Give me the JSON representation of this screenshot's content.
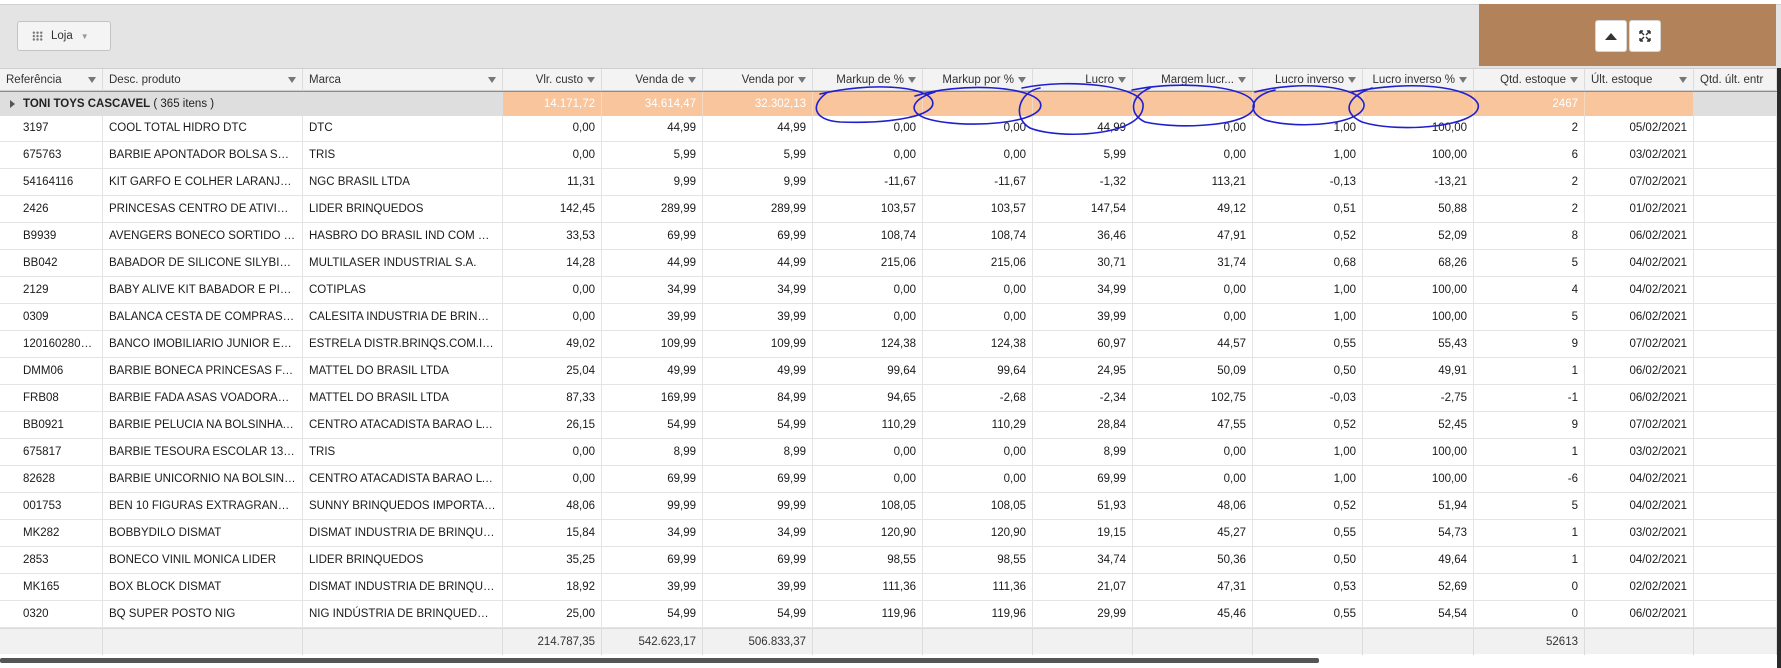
{
  "toolbar": {
    "group_button_label": "Loja",
    "group_icon": "grid-dots-icon",
    "caret_icon": "chevron-down-icon"
  },
  "controls": {
    "collapse_icon": "triangle-up-icon",
    "fullscreen_icon": "expand-arrows-icon"
  },
  "columns": [
    {
      "key": "ref",
      "label": "Referência",
      "align": "left"
    },
    {
      "key": "desc",
      "label": "Desc. produto",
      "align": "left"
    },
    {
      "key": "marca",
      "label": "Marca",
      "align": "left"
    },
    {
      "key": "vlr_custo",
      "label": "Vlr. custo",
      "align": "right"
    },
    {
      "key": "venda_de",
      "label": "Venda de",
      "align": "right"
    },
    {
      "key": "venda_por",
      "label": "Venda por",
      "align": "right"
    },
    {
      "key": "markup_de",
      "label": "Markup de %",
      "align": "right"
    },
    {
      "key": "markup_por",
      "label": "Markup por %",
      "align": "right"
    },
    {
      "key": "lucro",
      "label": "Lucro",
      "align": "right"
    },
    {
      "key": "margem",
      "label": "Margem lucr...",
      "align": "right"
    },
    {
      "key": "lucro_inv",
      "label": "Lucro inverso",
      "align": "right"
    },
    {
      "key": "lucro_inv_pct",
      "label": "Lucro inverso %",
      "align": "right"
    },
    {
      "key": "qtd",
      "label": "Qtd. estoque",
      "align": "right"
    },
    {
      "key": "ult",
      "label": "Últ. estoque",
      "align": "left"
    },
    {
      "key": "qtd_ult",
      "label": "Qtd. últ. entr",
      "align": "left"
    }
  ],
  "group": {
    "name": "TONI TOYS CASCAVEL",
    "count": "( 365 itens )",
    "vlr_custo": "14.171,72",
    "venda_de": "34.614,47",
    "venda_por": "32.302,13",
    "qtd": "2467"
  },
  "rows": [
    {
      "ref": "3197",
      "desc": "COOL TOTAL HIDRO DTC",
      "marca": "DTC",
      "vlr_custo": "0,00",
      "venda_de": "44,99",
      "venda_por": "44,99",
      "markup_de": "0,00",
      "markup_por": "0,00",
      "lucro": "44,99",
      "margem": "0,00",
      "lucro_inv": "1,00",
      "lucro_inv_pct": "100,00",
      "qtd": "2",
      "ult": "05/02/2021"
    },
    {
      "ref": "675763",
      "desc": "BARBIE APONTADOR BOLSA SUM...",
      "marca": "TRIS",
      "vlr_custo": "0,00",
      "venda_de": "5,99",
      "venda_por": "5,99",
      "markup_de": "0,00",
      "markup_por": "0,00",
      "lucro": "5,99",
      "margem": "0,00",
      "lucro_inv": "1,00",
      "lucro_inv_pct": "100,00",
      "qtd": "6",
      "ult": "03/02/2021"
    },
    {
      "ref": "54164116",
      "desc": "KIT GARFO E COLHER LARANJA E ...",
      "marca": "NGC BRASIL LTDA",
      "vlr_custo": "11,31",
      "venda_de": "9,99",
      "venda_por": "9,99",
      "markup_de": "-11,67",
      "markup_por": "-11,67",
      "lucro": "-1,32",
      "margem": "113,21",
      "lucro_inv": "-0,13",
      "lucro_inv_pct": "-13,21",
      "qtd": "2",
      "ult": "07/02/2021"
    },
    {
      "ref": "2426",
      "desc": "PRINCESAS CENTRO DE ATIVIDAD...",
      "marca": "LIDER BRINQUEDOS",
      "vlr_custo": "142,45",
      "venda_de": "289,99",
      "venda_por": "289,99",
      "markup_de": "103,57",
      "markup_por": "103,57",
      "lucro": "147,54",
      "margem": "49,12",
      "lucro_inv": "0,51",
      "lucro_inv_pct": "50,88",
      "qtd": "2",
      "ult": "01/02/2021"
    },
    {
      "ref": "B9939",
      "desc": "AVENGERS BONECO SORTIDO HAS...",
      "marca": "HASBRO DO BRASIL IND COM BRI...",
      "vlr_custo": "33,53",
      "venda_de": "69,99",
      "venda_por": "69,99",
      "markup_de": "108,74",
      "markup_por": "108,74",
      "lucro": "36,46",
      "margem": "47,91",
      "lucro_inv": "0,52",
      "lucro_inv_pct": "52,09",
      "qtd": "8",
      "ult": "06/02/2021"
    },
    {
      "ref": "BB042",
      "desc": "BABADOR DE SILICONE SILYBIB LE...",
      "marca": "MULTILASER INDUSTRIAL S.A.",
      "vlr_custo": "14,28",
      "venda_de": "44,99",
      "venda_por": "44,99",
      "markup_de": "215,06",
      "markup_por": "215,06",
      "lucro": "30,71",
      "margem": "31,74",
      "lucro_inv": "0,68",
      "lucro_inv_pct": "68,26",
      "qtd": "5",
      "ult": "04/02/2021"
    },
    {
      "ref": "2129",
      "desc": "BABY ALIVE KIT BABADOR E PINIC...",
      "marca": "COTIPLAS",
      "vlr_custo": "0,00",
      "venda_de": "34,99",
      "venda_por": "34,99",
      "markup_de": "0,00",
      "markup_por": "0,00",
      "lucro": "34,99",
      "margem": "0,00",
      "lucro_inv": "1,00",
      "lucro_inv_pct": "100,00",
      "qtd": "4",
      "ult": "04/02/2021"
    },
    {
      "ref": "0309",
      "desc": "BALANCA CESTA DE COMPRAS CA...",
      "marca": "CALESITA INDUSTRIA DE BRINQUE...",
      "vlr_custo": "0,00",
      "venda_de": "39,99",
      "venda_por": "39,99",
      "markup_de": "0,00",
      "markup_por": "0,00",
      "lucro": "39,99",
      "margem": "0,00",
      "lucro_inv": "1,00",
      "lucro_inv_pct": "100,00",
      "qtd": "5",
      "ult": "06/02/2021"
    },
    {
      "ref": "1201602800...",
      "desc": "BANCO IMOBILIARIO JUNIOR ESTR...",
      "marca": "ESTRELA DISTR.BRINQS.COM.IMP....",
      "vlr_custo": "49,02",
      "venda_de": "109,99",
      "venda_por": "109,99",
      "markup_de": "124,38",
      "markup_por": "124,38",
      "lucro": "60,97",
      "margem": "44,57",
      "lucro_inv": "0,55",
      "lucro_inv_pct": "55,43",
      "qtd": "9",
      "ult": "07/02/2021"
    },
    {
      "ref": "DMM06",
      "desc": "BARBIE BONECA PRINCESAS FANT...",
      "marca": "MATTEL DO BRASIL LTDA",
      "vlr_custo": "25,04",
      "venda_de": "49,99",
      "venda_por": "49,99",
      "markup_de": "99,64",
      "markup_por": "99,64",
      "lucro": "24,95",
      "margem": "50,09",
      "lucro_inv": "0,50",
      "lucro_inv_pct": "49,91",
      "qtd": "1",
      "ult": "06/02/2021"
    },
    {
      "ref": "FRB08",
      "desc": "BARBIE FADA ASAS VOADORAS M...",
      "marca": "MATTEL DO BRASIL LTDA",
      "vlr_custo": "87,33",
      "venda_de": "169,99",
      "venda_por": "84,99",
      "markup_de": "94,65",
      "markup_por": "-2,68",
      "lucro": "-2,34",
      "margem": "102,75",
      "lucro_inv": "-0,03",
      "lucro_inv_pct": "-2,75",
      "qtd": "-1",
      "ult": "06/02/2021"
    },
    {
      "ref": "BB0921",
      "desc": "BARBIE PELUCIA NA BOLSINHA BA...",
      "marca": "CENTRO ATACADISTA BARAO LTDA",
      "vlr_custo": "26,15",
      "venda_de": "54,99",
      "venda_por": "54,99",
      "markup_de": "110,29",
      "markup_por": "110,29",
      "lucro": "28,84",
      "margem": "47,55",
      "lucro_inv": "0,52",
      "lucro_inv_pct": "52,45",
      "qtd": "9",
      "ult": "07/02/2021"
    },
    {
      "ref": "675817",
      "desc": "BARBIE TESOURA ESCOLAR 135 M...",
      "marca": "TRIS",
      "vlr_custo": "0,00",
      "venda_de": "8,99",
      "venda_por": "8,99",
      "markup_de": "0,00",
      "markup_por": "0,00",
      "lucro": "8,99",
      "margem": "0,00",
      "lucro_inv": "1,00",
      "lucro_inv_pct": "100,00",
      "qtd": "1",
      "ult": "03/02/2021"
    },
    {
      "ref": "82628",
      "desc": "BARBIE UNICORNIO NA BOLSINHA...",
      "marca": "CENTRO ATACADISTA BARAO LTDA",
      "vlr_custo": "0,00",
      "venda_de": "69,99",
      "venda_por": "69,99",
      "markup_de": "0,00",
      "markup_por": "0,00",
      "lucro": "69,99",
      "margem": "0,00",
      "lucro_inv": "1,00",
      "lucro_inv_pct": "100,00",
      "qtd": "-6",
      "ult": "04/02/2021"
    },
    {
      "ref": "001753",
      "desc": "BEN 10 FIGURAS EXTRAGRANDES ...",
      "marca": "SUNNY BRINQUEDOS IMPORTACA...",
      "vlr_custo": "48,06",
      "venda_de": "99,99",
      "venda_por": "99,99",
      "markup_de": "108,05",
      "markup_por": "108,05",
      "lucro": "51,93",
      "margem": "48,06",
      "lucro_inv": "0,52",
      "lucro_inv_pct": "51,94",
      "qtd": "5",
      "ult": "04/02/2021"
    },
    {
      "ref": "MK282",
      "desc": "BOBBYDILO DISMAT",
      "marca": "DISMAT INDUSTRIA DE BRINQUED...",
      "vlr_custo": "15,84",
      "venda_de": "34,99",
      "venda_por": "34,99",
      "markup_de": "120,90",
      "markup_por": "120,90",
      "lucro": "19,15",
      "margem": "45,27",
      "lucro_inv": "0,55",
      "lucro_inv_pct": "54,73",
      "qtd": "1",
      "ult": "03/02/2021"
    },
    {
      "ref": "2853",
      "desc": "BONECO VINIL MONICA LIDER",
      "marca": "LIDER BRINQUEDOS",
      "vlr_custo": "35,25",
      "venda_de": "69,99",
      "venda_por": "69,99",
      "markup_de": "98,55",
      "markup_por": "98,55",
      "lucro": "34,74",
      "margem": "50,36",
      "lucro_inv": "0,50",
      "lucro_inv_pct": "49,64",
      "qtd": "1",
      "ult": "04/02/2021"
    },
    {
      "ref": "MK165",
      "desc": "BOX BLOCK DISMAT",
      "marca": "DISMAT INDUSTRIA DE BRINQUED...",
      "vlr_custo": "18,92",
      "venda_de": "39,99",
      "venda_por": "39,99",
      "markup_de": "111,36",
      "markup_por": "111,36",
      "lucro": "21,07",
      "margem": "47,31",
      "lucro_inv": "0,53",
      "lucro_inv_pct": "52,69",
      "qtd": "0",
      "ult": "02/02/2021"
    },
    {
      "ref": "0320",
      "desc": "BQ SUPER POSTO NIG",
      "marca": "NIG INDÚSTRIA DE BRINQUEDOS E...",
      "vlr_custo": "25,00",
      "venda_de": "54,99",
      "venda_por": "54,99",
      "markup_de": "119,96",
      "markup_por": "119,96",
      "lucro": "29,99",
      "margem": "45,46",
      "lucro_inv": "0,55",
      "lucro_inv_pct": "54,54",
      "qtd": "0",
      "ult": "06/02/2021"
    }
  ],
  "totals": {
    "vlr_custo": "214.787,35",
    "venda_de": "542.623,17",
    "venda_por": "506.833,37",
    "qtd": "52613"
  },
  "colors": {
    "accent": "#b2835a",
    "group_highlight": "#f9c59c",
    "annotation_ink": "#1f1fd0"
  }
}
